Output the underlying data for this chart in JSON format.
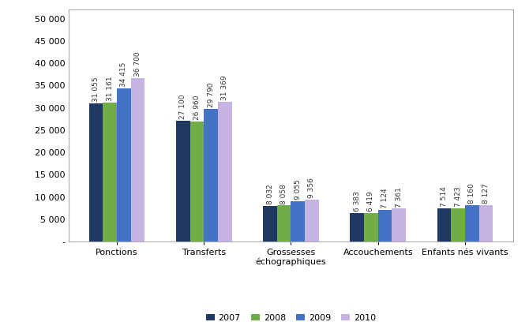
{
  "categories": [
    "Ponctions",
    "Transferts",
    "Grossesses\néchographiques",
    "Accouchements",
    "Enfants nés vivants"
  ],
  "years": [
    "2007",
    "2008",
    "2009",
    "2010"
  ],
  "values": [
    [
      31055,
      31161,
      34415,
      36700
    ],
    [
      27100,
      26960,
      29790,
      31369
    ],
    [
      8032,
      8058,
      9055,
      9356
    ],
    [
      6383,
      6419,
      7124,
      7361
    ],
    [
      7514,
      7423,
      8160,
      8127
    ]
  ],
  "bar_colors": [
    "#1F3864",
    "#70AD47",
    "#4472C4",
    "#C5B4E3"
  ],
  "ylim": [
    0,
    52000
  ],
  "yticks": [
    0,
    5000,
    10000,
    15000,
    20000,
    25000,
    30000,
    35000,
    40000,
    45000,
    50000
  ],
  "ytick_labels": [
    "-",
    "5 000",
    "10 000",
    "15 000",
    "20 000",
    "25 000",
    "30 000",
    "35 000",
    "40 000",
    "45 000",
    "50 000"
  ],
  "bar_width": 0.16,
  "value_labels": [
    [
      "31 055",
      "31 161",
      "34 415",
      "36 700"
    ],
    [
      "27 100",
      "26 960",
      "29 790",
      "31 369"
    ],
    [
      "8 032",
      "8 058",
      "9 055",
      "9 356"
    ],
    [
      "6 383",
      "6 419",
      "7 124",
      "7 361"
    ],
    [
      "7 514",
      "7 423",
      "8 160",
      "8 127"
    ]
  ],
  "label_fontsize": 6.5,
  "tick_fontsize": 8,
  "legend_fontsize": 8,
  "figure_width": 6.7,
  "figure_height": 4.08,
  "dpi": 100
}
